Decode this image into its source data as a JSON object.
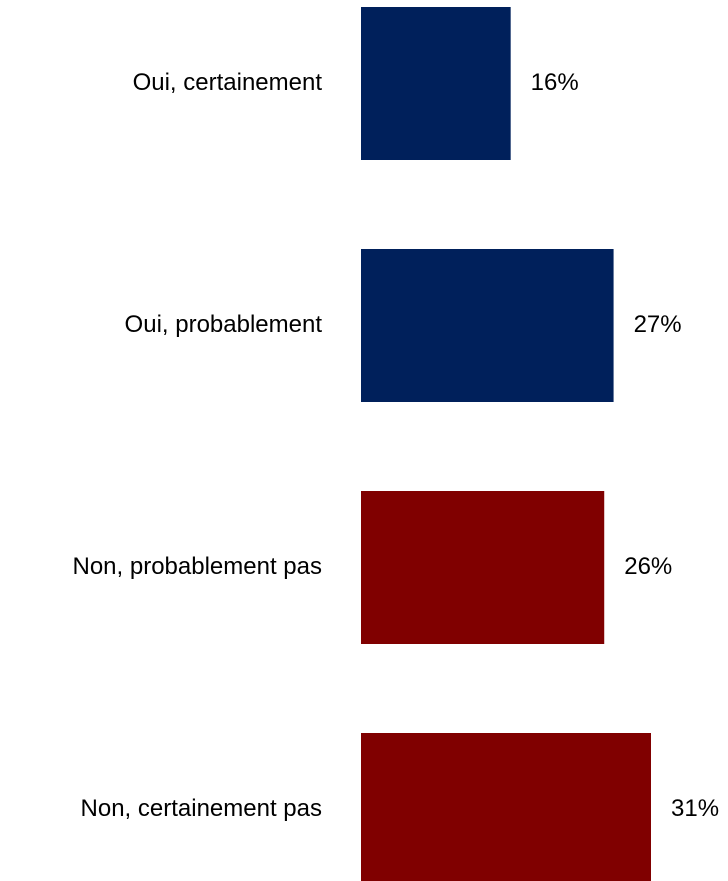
{
  "chart_data": {
    "type": "bar",
    "orientation": "horizontal",
    "categories": [
      "Oui, certainement",
      "Oui, probablement",
      "Non, probablement pas",
      "Non, certainement pas"
    ],
    "values": [
      16,
      27,
      26,
      31
    ],
    "value_labels": [
      "16%",
      "27%",
      "26%",
      "31%"
    ],
    "bar_colors": [
      "#00205B",
      "#00205B",
      "#800000",
      "#800000"
    ],
    "unit": "%",
    "xlim": [
      0,
      31
    ],
    "grid": false,
    "legend": "none"
  }
}
